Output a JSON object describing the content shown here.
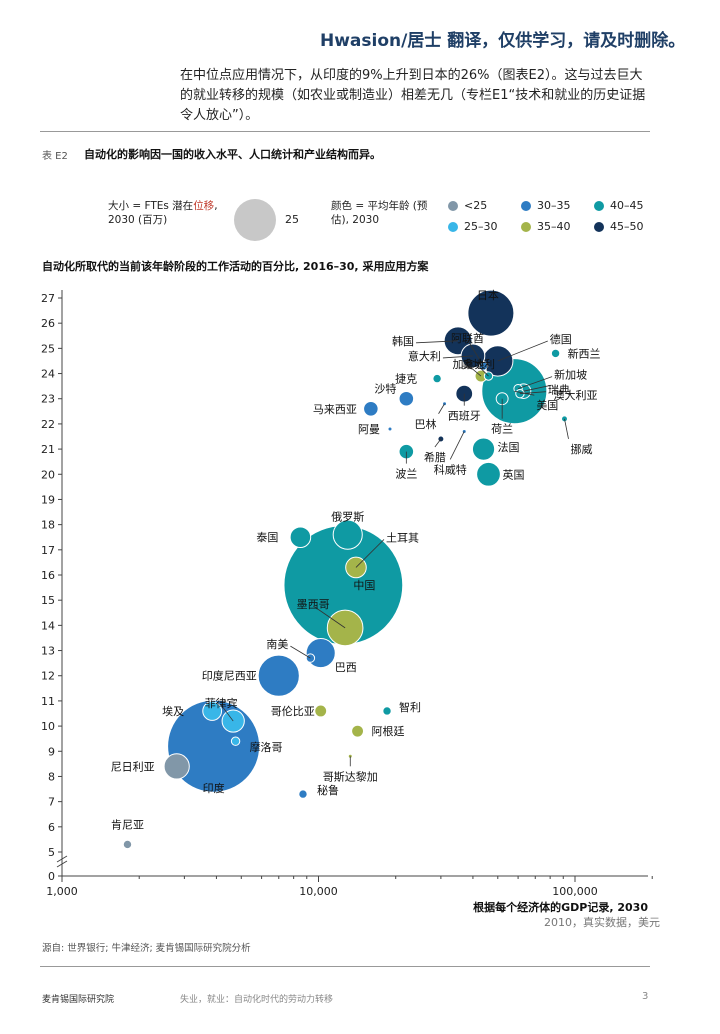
{
  "header_note": "Hwasion/居士 翻译，仅供学习，请及时删除。",
  "intro_text": "在中位点应用情况下，从印度的9%上升到日本的26%（图表E2）。这与过去巨大的就业转移的规模（如农业或制造业）相差无几（专栏E1“技术和就业的历史证据令人放心”）。",
  "figure": {
    "label": "表 E2",
    "title": "自动化的影响因一国的收入水平、人口统计和产业结构而异。"
  },
  "legend": {
    "size_text_prefix": "大小 = FTEs 潜在",
    "size_text_highlight": "位移",
    "size_text_suffix": ", 2030 (百万)",
    "size_value": "25",
    "color_text": "颜色 = 平均年龄 (预估), 2030",
    "color_items": [
      {
        "label": "<25",
        "color": "#8197a8"
      },
      {
        "label": "30–35",
        "color": "#2e7cc3"
      },
      {
        "label": "40–45",
        "color": "#0f9aa3"
      },
      {
        "label": "25–30",
        "color": "#38b6e8"
      },
      {
        "label": "35–40",
        "color": "#a4b44a"
      },
      {
        "label": "45–50",
        "color": "#13335a"
      }
    ]
  },
  "chart_data": {
    "type": "scatter",
    "title": "自动化所取代的当前该年龄阶段的工作活动的百分比, 2016–30, 采用应用方案",
    "xlabel": "根据每个经济体的GDP记录, 2030",
    "xlabel_sub": "2010，真实数据，美元",
    "x_scale": "log",
    "xlim": [
      1000,
      200000
    ],
    "ylim": [
      5,
      27
    ],
    "y_break": true,
    "x_ticks": [
      {
        "v": 1000,
        "label": "1,000"
      },
      {
        "v": 10000,
        "label": "10,000"
      },
      {
        "v": 100000,
        "label": "100,000"
      }
    ],
    "y_ticks": [
      0,
      5,
      6,
      7,
      8,
      9,
      10,
      11,
      12,
      13,
      14,
      15,
      16,
      17,
      18,
      19,
      20,
      21,
      22,
      23,
      24,
      25,
      26,
      27
    ],
    "colors": {
      "<25": "#8197a8",
      "25-30": "#38b6e8",
      "30-35": "#2e7cc3",
      "35-40": "#a4b44a",
      "40-45": "#0f9aa3",
      "45-50": "#13335a"
    },
    "points": [
      {
        "name": "日本",
        "x": 47000,
        "y": 26.4,
        "ftes": 30,
        "age": "45-50"
      },
      {
        "name": "德国",
        "x": 50000,
        "y": 24.5,
        "ftes": 13,
        "age": "45-50"
      },
      {
        "name": "阿联酋",
        "x": 44000,
        "y": 24.3,
        "ftes": 1,
        "age": "30-35"
      },
      {
        "name": "奥地利",
        "x": 46000,
        "y": 23.9,
        "ftes": 1,
        "age": "40-45"
      },
      {
        "name": "韩国",
        "x": 35000,
        "y": 25.3,
        "ftes": 11,
        "age": "45-50"
      },
      {
        "name": "意大利",
        "x": 40000,
        "y": 24.7,
        "ftes": 8,
        "age": "45-50"
      },
      {
        "name": "新西兰",
        "x": 84000,
        "y": 24.8,
        "ftes": 1,
        "age": "40-45"
      },
      {
        "name": "捷克",
        "x": 29000,
        "y": 23.8,
        "ftes": 1,
        "age": "40-45"
      },
      {
        "name": "加拿大",
        "x": 43000,
        "y": 23.9,
        "ftes": 2,
        "age": "35-40"
      },
      {
        "name": "新加坡",
        "x": 60000,
        "y": 23.4,
        "ftes": 1,
        "age": "40-45"
      },
      {
        "name": "瑞典",
        "x": 61000,
        "y": 23.2,
        "ftes": 1,
        "age": "40-45"
      },
      {
        "name": "澳大利亚",
        "x": 63000,
        "y": 23.3,
        "ftes": 3,
        "age": "40-45"
      },
      {
        "name": "美国",
        "x": 58000,
        "y": 23.3,
        "ftes": 60,
        "age": "40-45"
      },
      {
        "name": "荷兰",
        "x": 52000,
        "y": 23.0,
        "ftes": 2,
        "age": "40-45"
      },
      {
        "name": "沙特",
        "x": 22000,
        "y": 23.0,
        "ftes": 3,
        "age": "30-35"
      },
      {
        "name": "西班牙",
        "x": 37000,
        "y": 23.2,
        "ftes": 4,
        "age": "45-50"
      },
      {
        "name": "巴林",
        "x": 31000,
        "y": 22.8,
        "ftes": 0.1,
        "age": "30-35"
      },
      {
        "name": "马来西亚",
        "x": 16000,
        "y": 22.6,
        "ftes": 3,
        "age": "30-35"
      },
      {
        "name": "阿曼",
        "x": 19000,
        "y": 21.8,
        "ftes": 0.2,
        "age": "30-35"
      },
      {
        "name": "挪威",
        "x": 91000,
        "y": 22.2,
        "ftes": 0.5,
        "age": "40-45"
      },
      {
        "name": "希腊",
        "x": 30000,
        "y": 21.4,
        "ftes": 0.5,
        "age": "45-50"
      },
      {
        "name": "科威特",
        "x": 37000,
        "y": 21.7,
        "ftes": 0.2,
        "age": "30-35"
      },
      {
        "name": "法国",
        "x": 44000,
        "y": 21.0,
        "ftes": 7,
        "age": "40-45"
      },
      {
        "name": "波兰",
        "x": 22000,
        "y": 20.9,
        "ftes": 3,
        "age": "40-45"
      },
      {
        "name": "英国",
        "x": 46000,
        "y": 20.0,
        "ftes": 8,
        "age": "40-45"
      },
      {
        "name": "俄罗斯",
        "x": 13000,
        "y": 17.6,
        "ftes": 12,
        "age": "40-45"
      },
      {
        "name": "泰国",
        "x": 8500,
        "y": 17.5,
        "ftes": 6,
        "age": "40-45"
      },
      {
        "name": "土耳其",
        "x": 14000,
        "y": 16.3,
        "ftes": 6,
        "age": "35-40"
      },
      {
        "name": "中国",
        "x": 12500,
        "y": 15.6,
        "ftes": 200,
        "age": "40-45"
      },
      {
        "name": "墨西哥",
        "x": 12700,
        "y": 13.9,
        "ftes": 18,
        "age": "35-40"
      },
      {
        "name": "南美",
        "x": 9300,
        "y": 12.7,
        "ftes": 1,
        "age": "30-35"
      },
      {
        "name": "巴西",
        "x": 10200,
        "y": 12.9,
        "ftes": 12,
        "age": "30-35"
      },
      {
        "name": "印度尼西亚",
        "x": 7000,
        "y": 12.0,
        "ftes": 24,
        "age": "30-35"
      },
      {
        "name": "智利",
        "x": 18500,
        "y": 10.6,
        "ftes": 1,
        "age": "40-45"
      },
      {
        "name": "哥伦比亚",
        "x": 10200,
        "y": 10.6,
        "ftes": 2,
        "age": "35-40"
      },
      {
        "name": "阿根廷",
        "x": 14200,
        "y": 9.8,
        "ftes": 2,
        "age": "35-40"
      },
      {
        "name": "哥斯达黎加",
        "x": 13300,
        "y": 8.8,
        "ftes": 0.2,
        "age": "35-40"
      },
      {
        "name": "埃及",
        "x": 3850,
        "y": 10.6,
        "ftes": 5,
        "age": "25-30"
      },
      {
        "name": "菲律宾",
        "x": 4650,
        "y": 10.2,
        "ftes": 7,
        "age": "25-30"
      },
      {
        "name": "摩洛哥",
        "x": 4750,
        "y": 9.4,
        "ftes": 1,
        "age": "25-30"
      },
      {
        "name": "印度",
        "x": 3900,
        "y": 9.2,
        "ftes": 120,
        "age": "30-35"
      },
      {
        "name": "尼日利亚",
        "x": 2800,
        "y": 8.4,
        "ftes": 9,
        "age": "<25"
      },
      {
        "name": "秘鲁",
        "x": 8700,
        "y": 7.3,
        "ftes": 1,
        "age": "30-35"
      },
      {
        "name": "肯尼亚",
        "x": 1800,
        "y": 5.3,
        "ftes": 1,
        "age": "<25"
      }
    ]
  },
  "source": "源自: 世界银行; 牛津经济; 麦肯锡国际研究院分析",
  "footer": {
    "left": "麦肯锡国际研究院",
    "mid": "失业，就业：自动化时代的劳动力转移",
    "page": "3"
  }
}
